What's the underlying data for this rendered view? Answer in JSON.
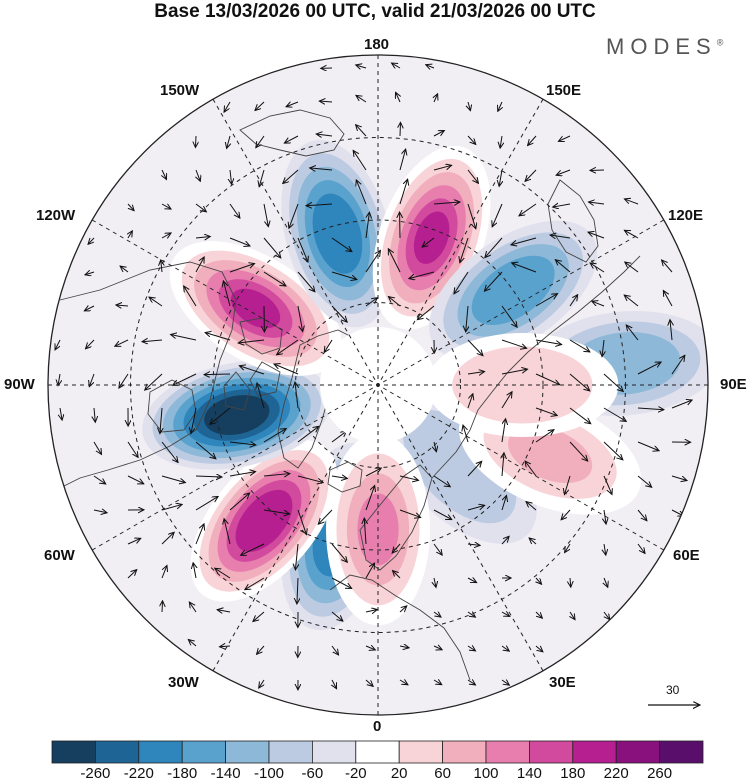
{
  "title": "Base 13/03/2026 00 UTC, valid 21/03/2026 00 UTC",
  "brand": {
    "name": "MODES",
    "mark": "®"
  },
  "map": {
    "projection": "north-polar-stereographic",
    "longitude_labels": {
      "lon_180": "180",
      "lon_150E": "150E",
      "lon_120E": "120E",
      "lon_90E": "90E",
      "lon_60E": "60E",
      "lon_30E": "30E",
      "lon_0": "0",
      "lon_30W": "30W",
      "lon_60W": "60W",
      "lon_90W": "90W",
      "lon_120W": "120W",
      "lon_150W": "150W"
    },
    "anomaly_centers": [
      {
        "lon": -15,
        "lat": 52,
        "value": -180
      },
      {
        "lon": -40,
        "lat": 47,
        "value": 220
      },
      {
        "lon": -78,
        "lat": 55,
        "value": -260
      },
      {
        "lon": -122,
        "lat": 55,
        "value": 200
      },
      {
        "lon": -165,
        "lat": 52,
        "value": -200
      },
      {
        "lon": 160,
        "lat": 52,
        "value": 200
      },
      {
        "lon": 125,
        "lat": 50,
        "value": -160
      },
      {
        "lon": 45,
        "lat": 62,
        "value": -60
      },
      {
        "lon": 68,
        "lat": 45,
        "value": 90
      },
      {
        "lon": 0,
        "lat": 55,
        "value": 120
      },
      {
        "lon": 95,
        "lat": 30,
        "value": -100
      },
      {
        "lon": 90,
        "lat": 55,
        "value": 60
      }
    ]
  },
  "colorbar": {
    "ticks": [
      "-260",
      "-220",
      "-180",
      "-140",
      "-100",
      "-60",
      "-20",
      "20",
      "60",
      "100",
      "140",
      "180",
      "220",
      "260"
    ],
    "colors": [
      "#163e5e",
      "#1e6596",
      "#2f86bd",
      "#5aa2ce",
      "#8db8d8",
      "#bccbe2",
      "#e1e1ee",
      "#ffffff",
      "#f8d3d7",
      "#f1aebd",
      "#e77eae",
      "#d24a9d",
      "#b51f90",
      "#89117d",
      "#590e6c"
    ]
  },
  "reference_vector": {
    "label": "30"
  }
}
